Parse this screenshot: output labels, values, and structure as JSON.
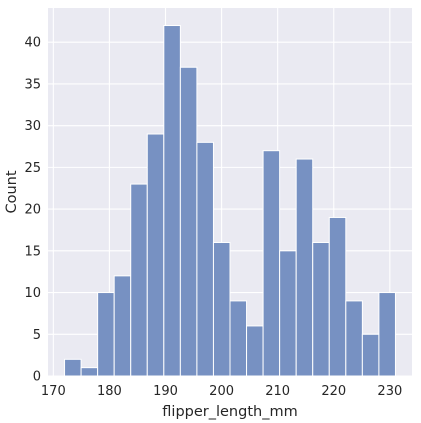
{
  "chart_data": {
    "type": "bar",
    "title": "",
    "xlabel": "flipper_length_mm",
    "ylabel": "Count",
    "bin_edges": [
      172.0,
      174.95,
      177.9,
      180.85,
      183.8,
      186.75,
      189.7,
      192.65,
      195.6,
      198.55,
      201.5,
      204.45,
      207.4,
      210.35,
      213.3,
      216.25,
      219.2,
      222.15,
      225.1,
      228.05,
      231.0
    ],
    "counts": [
      2,
      1,
      10,
      12,
      23,
      29,
      42,
      37,
      28,
      16,
      9,
      6,
      27,
      15,
      26,
      16,
      19,
      9,
      5,
      10
    ],
    "xlim": [
      169.05,
      233.95
    ],
    "ylim": [
      0,
      44.1
    ],
    "xticks": [
      170,
      180,
      190,
      200,
      210,
      220,
      230
    ],
    "yticks": [
      0,
      5,
      10,
      15,
      20,
      25,
      30,
      35,
      40
    ],
    "grid": true,
    "colors": {
      "background": "#eaeaf2",
      "grid": "#ffffff",
      "bar_fill": "#7791c2",
      "bar_edge": "#ffffff"
    }
  }
}
